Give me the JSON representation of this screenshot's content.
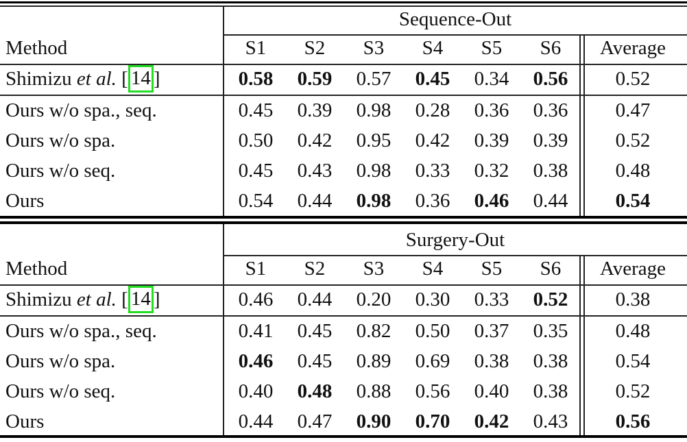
{
  "tables": [
    {
      "group_title": "Sequence-Out",
      "method_header": "Method",
      "columns": [
        "S1",
        "S2",
        "S3",
        "S4",
        "S5",
        "S6"
      ],
      "average_header": "Average",
      "baseline": {
        "name_prefix": "Shimizu ",
        "name_italic": "et al.",
        "cite_open": " [",
        "cite_ref": "14",
        "cite_close": "]",
        "values": [
          "0.58",
          "0.59",
          "0.57",
          "0.45",
          "0.34",
          "0.56"
        ],
        "bold": [
          true,
          true,
          false,
          true,
          false,
          true
        ],
        "average": "0.52",
        "average_bold": false
      },
      "rows": [
        {
          "method": "Ours w/o spa., seq.",
          "values": [
            "0.45",
            "0.39",
            "0.98",
            "0.28",
            "0.36",
            "0.36"
          ],
          "bold": [
            false,
            false,
            false,
            false,
            false,
            false
          ],
          "average": "0.47",
          "average_bold": false
        },
        {
          "method": "Ours w/o spa.",
          "values": [
            "0.50",
            "0.42",
            "0.95",
            "0.42",
            "0.39",
            "0.39"
          ],
          "bold": [
            false,
            false,
            false,
            false,
            false,
            false
          ],
          "average": "0.52",
          "average_bold": false
        },
        {
          "method": "Ours w/o seq.",
          "values": [
            "0.45",
            "0.43",
            "0.98",
            "0.33",
            "0.32",
            "0.38"
          ],
          "bold": [
            false,
            false,
            false,
            false,
            false,
            false
          ],
          "average": "0.48",
          "average_bold": false
        },
        {
          "method": "Ours",
          "values": [
            "0.54",
            "0.44",
            "0.98",
            "0.36",
            "0.46",
            "0.44"
          ],
          "bold": [
            false,
            false,
            true,
            false,
            true,
            false
          ],
          "average": "0.54",
          "average_bold": true
        }
      ]
    },
    {
      "group_title": "Surgery-Out",
      "method_header": "Method",
      "columns": [
        "S1",
        "S2",
        "S3",
        "S4",
        "S5",
        "S6"
      ],
      "average_header": "Average",
      "baseline": {
        "name_prefix": "Shimizu ",
        "name_italic": "et al.",
        "cite_open": " [",
        "cite_ref": "14",
        "cite_close": "]",
        "values": [
          "0.46",
          "0.44",
          "0.20",
          "0.30",
          "0.33",
          "0.52"
        ],
        "bold": [
          false,
          false,
          false,
          false,
          false,
          true
        ],
        "average": "0.38",
        "average_bold": false
      },
      "rows": [
        {
          "method": "Ours w/o spa., seq.",
          "values": [
            "0.41",
            "0.45",
            "0.82",
            "0.50",
            "0.37",
            "0.35"
          ],
          "bold": [
            false,
            false,
            false,
            false,
            false,
            false
          ],
          "average": "0.48",
          "average_bold": false
        },
        {
          "method": "Ours w/o spa.",
          "values": [
            "0.46",
            "0.45",
            "0.89",
            "0.69",
            "0.38",
            "0.38"
          ],
          "bold": [
            true,
            false,
            false,
            false,
            false,
            false
          ],
          "average": "0.54",
          "average_bold": false
        },
        {
          "method": "Ours w/o seq.",
          "values": [
            "0.40",
            "0.48",
            "0.88",
            "0.56",
            "0.40",
            "0.38"
          ],
          "bold": [
            false,
            true,
            false,
            false,
            false,
            false
          ],
          "average": "0.52",
          "average_bold": false
        },
        {
          "method": "Ours",
          "values": [
            "0.44",
            "0.47",
            "0.90",
            "0.70",
            "0.42",
            "0.43"
          ],
          "bold": [
            false,
            false,
            true,
            true,
            true,
            false
          ],
          "average": "0.56",
          "average_bold": true
        }
      ]
    }
  ]
}
